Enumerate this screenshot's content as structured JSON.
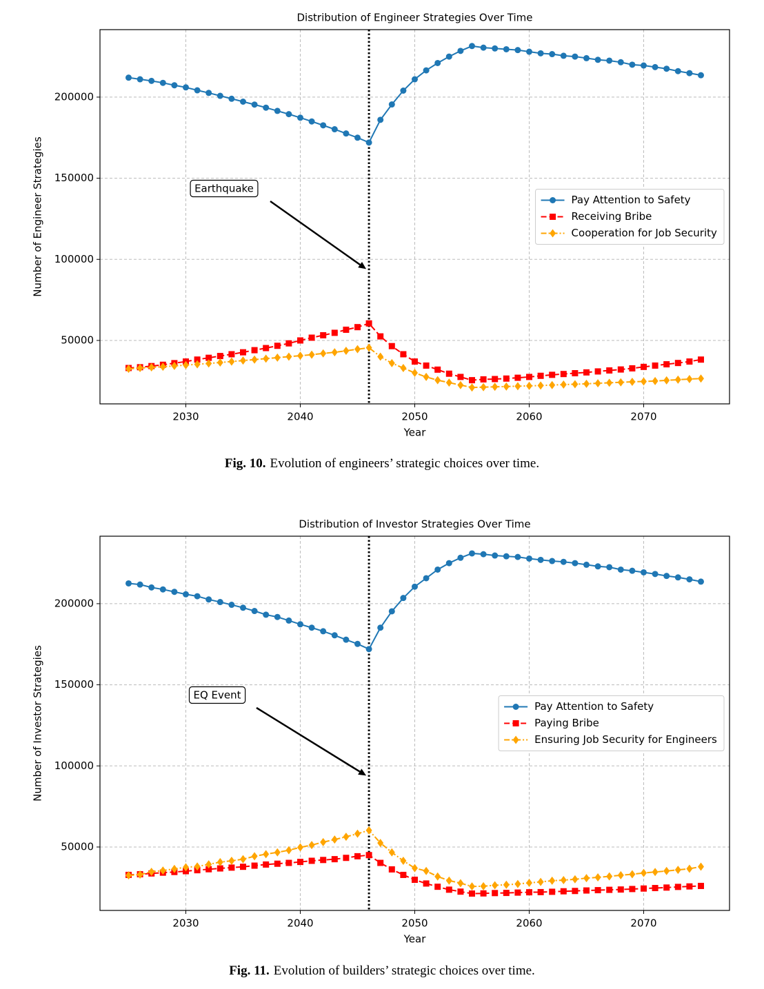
{
  "chart_data": [
    {
      "type": "line",
      "title": "Distribution of Engineer Strategies Over Time",
      "xlabel": "Year",
      "ylabel": "Number of Engineer Strategies",
      "x": [
        2025,
        2026,
        2027,
        2028,
        2029,
        2030,
        2031,
        2032,
        2033,
        2034,
        2035,
        2036,
        2037,
        2038,
        2039,
        2040,
        2041,
        2042,
        2043,
        2044,
        2045,
        2046,
        2047,
        2048,
        2049,
        2050,
        2051,
        2052,
        2053,
        2054,
        2055,
        2056,
        2057,
        2058,
        2059,
        2060,
        2061,
        2062,
        2063,
        2064,
        2065,
        2066,
        2067,
        2068,
        2069,
        2070,
        2071,
        2072,
        2073,
        2074,
        2075
      ],
      "series": [
        {
          "name": "Pay Attention to Safety",
          "color": "#1f77b4",
          "marker": "circle",
          "linestyle": "solid",
          "values": [
            212000,
            211000,
            210000,
            208800,
            207300,
            206000,
            204200,
            202600,
            200800,
            199000,
            197200,
            195400,
            193500,
            191500,
            189500,
            187300,
            185000,
            182600,
            180200,
            177600,
            175000,
            172000,
            186000,
            195500,
            204000,
            211000,
            216500,
            221000,
            225000,
            228500,
            231500,
            230500,
            230000,
            229500,
            229000,
            228000,
            227000,
            226500,
            225500,
            225000,
            224000,
            223000,
            222500,
            221500,
            220000,
            219500,
            218500,
            217500,
            216000,
            214800,
            213500
          ]
        },
        {
          "name": "Receiving Bribe",
          "color": "#ff0000",
          "marker": "square",
          "linestyle": "dashed",
          "values": [
            33000,
            33500,
            34200,
            35000,
            36000,
            37000,
            38200,
            39300,
            40400,
            41500,
            42700,
            44000,
            45300,
            46700,
            48200,
            50000,
            51700,
            53200,
            54700,
            56600,
            58200,
            60500,
            52500,
            46500,
            41500,
            37000,
            34500,
            32000,
            29500,
            27500,
            25500,
            26000,
            26200,
            26500,
            27000,
            27500,
            28200,
            28800,
            29300,
            29800,
            30300,
            30900,
            31500,
            32100,
            32800,
            33700,
            34500,
            35300,
            36100,
            37000,
            38200
          ]
        },
        {
          "name": "Cooperation for Job Security",
          "color": "#ffa500",
          "marker": "diamond",
          "linestyle": "dashdot",
          "values": [
            32500,
            33000,
            33400,
            33800,
            34300,
            34800,
            35300,
            35800,
            36400,
            37000,
            37600,
            38200,
            38800,
            39400,
            40000,
            40600,
            41200,
            42000,
            42700,
            43600,
            44600,
            45500,
            40000,
            36000,
            33000,
            30000,
            27500,
            25500,
            24000,
            22500,
            21000,
            21200,
            21400,
            21600,
            21800,
            22000,
            22200,
            22500,
            22800,
            23000,
            23300,
            23600,
            23900,
            24200,
            24500,
            24700,
            25000,
            25400,
            25800,
            26200,
            26500
          ]
        }
      ],
      "xlim": [
        2022.5,
        2077.5
      ],
      "xticks": [
        2030,
        2040,
        2050,
        2060,
        2070
      ],
      "ylim": [
        10900,
        241600
      ],
      "yticks": [
        50000,
        100000,
        150000,
        200000
      ],
      "grid": true,
      "legend": "center right",
      "event_x": 2046,
      "annotation": {
        "text": "Earthquake",
        "xy": [
          2046,
          94000
        ]
      }
    },
    {
      "type": "line",
      "title": "Distribution of Investor Strategies Over Time",
      "xlabel": "Year",
      "ylabel": "Number of Investor Strategies",
      "x": [
        2025,
        2026,
        2027,
        2028,
        2029,
        2030,
        2031,
        2032,
        2033,
        2034,
        2035,
        2036,
        2037,
        2038,
        2039,
        2040,
        2041,
        2042,
        2043,
        2044,
        2045,
        2046,
        2047,
        2048,
        2049,
        2050,
        2051,
        2052,
        2053,
        2054,
        2055,
        2056,
        2057,
        2058,
        2059,
        2060,
        2061,
        2062,
        2063,
        2064,
        2065,
        2066,
        2067,
        2068,
        2069,
        2070,
        2071,
        2072,
        2073,
        2074,
        2075
      ],
      "series": [
        {
          "name": "Pay Attention to Safety",
          "color": "#1f77b4",
          "marker": "circle",
          "linestyle": "solid",
          "values": [
            212500,
            211800,
            210000,
            208800,
            207300,
            205800,
            204600,
            202600,
            201000,
            199300,
            197500,
            195500,
            193200,
            191800,
            189600,
            187300,
            185200,
            183000,
            180500,
            177800,
            175200,
            172000,
            185200,
            195300,
            203500,
            210500,
            215700,
            221000,
            225000,
            228300,
            231000,
            230500,
            229700,
            229200,
            228800,
            227800,
            227000,
            226300,
            225800,
            225000,
            224000,
            223000,
            222500,
            221000,
            220300,
            219300,
            218300,
            217100,
            216200,
            215000,
            213600
          ]
        },
        {
          "name": "Paying Bribe",
          "color": "#ff0000",
          "marker": "square",
          "linestyle": "dashed",
          "values": [
            32800,
            33200,
            33700,
            34200,
            34600,
            35100,
            35700,
            36300,
            36800,
            37300,
            37800,
            38500,
            39200,
            39700,
            40200,
            40800,
            41500,
            42000,
            42500,
            43300,
            44300,
            45000,
            40200,
            36200,
            32800,
            29800,
            27500,
            25500,
            23700,
            22500,
            21300,
            21400,
            21600,
            21700,
            21900,
            22100,
            22200,
            22400,
            22700,
            22900,
            23200,
            23400,
            23600,
            23800,
            24100,
            24400,
            24700,
            25000,
            25400,
            25700,
            26000
          ]
        },
        {
          "name": "Ensuring Job Security for Engineers",
          "color": "#ffa500",
          "marker": "diamond",
          "linestyle": "dashdot",
          "values": [
            32500,
            33000,
            34700,
            35500,
            36500,
            37500,
            38000,
            39300,
            40700,
            41500,
            42500,
            44300,
            45600,
            46700,
            48000,
            49800,
            51200,
            53000,
            54600,
            56300,
            58200,
            60300,
            52500,
            46700,
            41500,
            37000,
            35200,
            31800,
            29300,
            27700,
            25700,
            25800,
            26400,
            26700,
            27200,
            27900,
            28500,
            29200,
            29600,
            30100,
            30800,
            31300,
            31900,
            32600,
            33200,
            34000,
            34600,
            35200,
            35900,
            36600,
            37900
          ]
        }
      ],
      "xlim": [
        2022.5,
        2077.5
      ],
      "xticks": [
        2030,
        2040,
        2050,
        2060,
        2070
      ],
      "ylim": [
        10900,
        241600
      ],
      "yticks": [
        50000,
        100000,
        150000,
        200000
      ],
      "grid": true,
      "legend": "center right",
      "event_x": 2046,
      "annotation": {
        "text": "EQ Event",
        "xy": [
          2046,
          94000
        ]
      }
    }
  ],
  "captions": [
    {
      "label": "Fig. 10.",
      "text": "Evolution of engineers’ strategic choices over time."
    },
    {
      "label": "Fig. 11.",
      "text": "Evolution of builders’ strategic choices over time."
    }
  ]
}
